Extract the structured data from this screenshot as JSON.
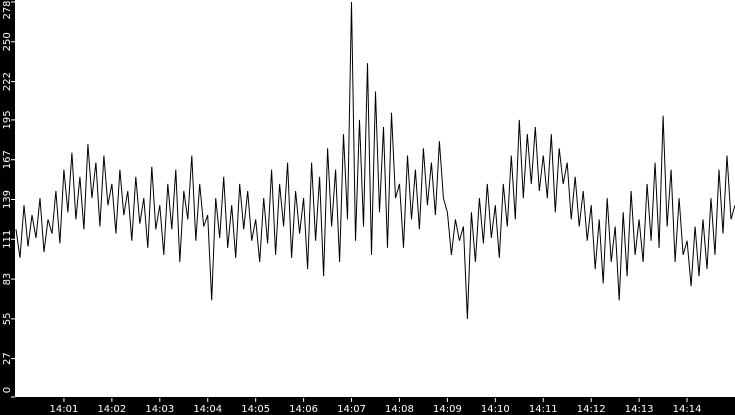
{
  "chart_data": {
    "type": "line",
    "title": "",
    "xlabel": "",
    "ylabel": "",
    "x_start": "14:00:00",
    "x_end": "14:15:00",
    "sample_interval_seconds": 5,
    "xlim": [
      "14:00",
      "14:15"
    ],
    "ylim": [
      0,
      278
    ],
    "x_ticks": [
      "14:01",
      "14:02",
      "14:03",
      "14:04",
      "14:05",
      "14:06",
      "14:07",
      "14:08",
      "14:09",
      "14:10",
      "14:11",
      "14:12",
      "14:13",
      "14:14"
    ],
    "y_ticks": [
      0,
      27,
      55,
      83,
      111,
      139,
      167,
      195,
      222,
      250,
      278
    ],
    "grid": false,
    "colors": {
      "background": "#000000",
      "plot": "#ffffff",
      "line": "#000000",
      "axis_text": "#ffffff"
    },
    "values": [
      118,
      98,
      135,
      106,
      128,
      112,
      140,
      102,
      125,
      115,
      145,
      108,
      160,
      130,
      172,
      125,
      155,
      118,
      178,
      140,
      165,
      120,
      170,
      135,
      150,
      115,
      160,
      128,
      145,
      110,
      155,
      122,
      140,
      105,
      162,
      118,
      135,
      100,
      150,
      118,
      160,
      95,
      145,
      125,
      170,
      110,
      150,
      120,
      128,
      68,
      140,
      112,
      155,
      105,
      135,
      98,
      150,
      118,
      145,
      110,
      125,
      95,
      140,
      108,
      160,
      100,
      150,
      120,
      165,
      98,
      145,
      115,
      140,
      90,
      165,
      110,
      155,
      85,
      175,
      120,
      160,
      95,
      185,
      125,
      278,
      110,
      195,
      120,
      235,
      100,
      215,
      130,
      190,
      105,
      200,
      140,
      150,
      105,
      170,
      125,
      160,
      118,
      175,
      135,
      165,
      128,
      180,
      140,
      130,
      100,
      125,
      110,
      120,
      55,
      130,
      95,
      140,
      108,
      150,
      112,
      135,
      98,
      150,
      120,
      170,
      125,
      195,
      140,
      185,
      150,
      190,
      145,
      170,
      140,
      185,
      130,
      175,
      150,
      165,
      125,
      155,
      120,
      145,
      110,
      135,
      90,
      125,
      80,
      140,
      95,
      120,
      68,
      130,
      85,
      145,
      100,
      125,
      95,
      150,
      110,
      165,
      105,
      198,
      120,
      160,
      95,
      140,
      100,
      110,
      78,
      120,
      85,
      125,
      90,
      140,
      100,
      160,
      115,
      170,
      125,
      135
    ]
  }
}
